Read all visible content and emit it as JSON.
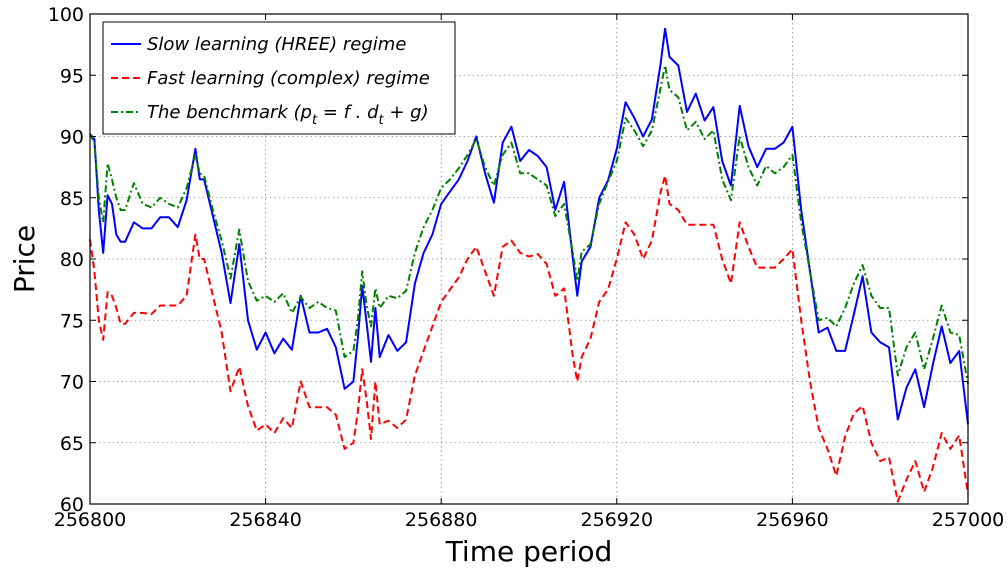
{
  "chart_data": {
    "type": "line",
    "title": "",
    "xlabel": "Time period",
    "ylabel": "Price",
    "xlim": [
      256800,
      257000
    ],
    "ylim": [
      60,
      100
    ],
    "xticks": [
      256800,
      256840,
      256880,
      256920,
      256960,
      257000
    ],
    "yticks": [
      60,
      65,
      70,
      75,
      80,
      85,
      90,
      95,
      100
    ],
    "grid": true,
    "legend_position": "top-left",
    "legend": {
      "slow": "Slow learning (HREE) regime",
      "fast": "Fast learning (complex) regime",
      "bench_prefix": "The benchmark (p",
      "bench_sub1": "t",
      "bench_mid": " = f . d",
      "bench_sub2": "t",
      "bench_suffix": " + g)"
    },
    "series": [
      {
        "name": "Slow learning (HREE) regime",
        "color": "#0000ff",
        "style": "solid",
        "x": [
          256800,
          256801,
          256802,
          256803,
          256804,
          256805,
          256806,
          256807,
          256808,
          256810,
          256812,
          256814,
          256816,
          256818,
          256820,
          256822,
          256824,
          256825,
          256826,
          256828,
          256830,
          256832,
          256834,
          256836,
          256838,
          256840,
          256842,
          256844,
          256846,
          256848,
          256850,
          256852,
          256854,
          256856,
          256858,
          256860,
          256861,
          256862,
          256863,
          256864,
          256865,
          256866,
          256868,
          256870,
          256872,
          256874,
          256876,
          256878,
          256880,
          256882,
          256884,
          256886,
          256888,
          256890,
          256892,
          256894,
          256896,
          256898,
          256900,
          256902,
          256904,
          256906,
          256908,
          256910,
          256911,
          256912,
          256914,
          256916,
          256918,
          256920,
          256922,
          256924,
          256926,
          256928,
          256930,
          256931,
          256932,
          256934,
          256936,
          256938,
          256940,
          256942,
          256944,
          256946,
          256948,
          256950,
          256952,
          256954,
          256956,
          256958,
          256960,
          256962,
          256964,
          256966,
          256968,
          256970,
          256972,
          256974,
          256976,
          256978,
          256980,
          256982,
          256984,
          256986,
          256988,
          256990,
          256992,
          256994,
          256996,
          256998,
          257000
        ],
        "y": [
          90.2,
          89.8,
          84.0,
          80.5,
          85.2,
          84.5,
          82.0,
          81.4,
          81.4,
          83.0,
          82.5,
          82.5,
          83.4,
          83.4,
          82.6,
          84.8,
          89.0,
          86.5,
          86.5,
          83.5,
          80.5,
          76.4,
          81.2,
          75.0,
          72.6,
          74.0,
          72.3,
          73.5,
          72.6,
          77.0,
          74.0,
          74.0,
          74.3,
          72.8,
          69.4,
          70.0,
          73.5,
          77.8,
          74.8,
          71.6,
          76.0,
          72.0,
          73.8,
          72.5,
          73.2,
          78.0,
          80.5,
          82.0,
          84.5,
          85.5,
          86.5,
          88.0,
          90.0,
          87.0,
          84.6,
          89.5,
          90.8,
          88.0,
          88.9,
          88.4,
          87.5,
          84.0,
          86.3,
          80.0,
          77.0,
          79.8,
          81.0,
          85.0,
          86.4,
          89.0,
          92.8,
          91.5,
          90.0,
          91.4,
          96.0,
          98.8,
          96.5,
          95.8,
          92.0,
          93.5,
          91.3,
          92.4,
          88.0,
          86.0,
          92.5,
          89.2,
          87.5,
          89.0,
          89.0,
          89.5,
          90.8,
          84.0,
          79.0,
          74.0,
          74.4,
          72.5,
          72.5,
          75.5,
          78.6,
          74.0,
          73.2,
          72.8,
          66.9,
          69.5,
          71.0,
          67.9,
          71.4,
          74.5,
          71.5,
          72.5,
          66.5
        ]
      },
      {
        "name": "Fast learning (complex) regime",
        "color": "#ff0000",
        "style": "dashed",
        "x": [
          256800,
          256801,
          256802,
          256803,
          256804,
          256805,
          256806,
          256807,
          256808,
          256810,
          256812,
          256814,
          256816,
          256818,
          256820,
          256822,
          256824,
          256825,
          256826,
          256828,
          256830,
          256832,
          256834,
          256836,
          256838,
          256840,
          256842,
          256844,
          256846,
          256848,
          256850,
          256852,
          256854,
          256856,
          256858,
          256860,
          256861,
          256862,
          256863,
          256864,
          256865,
          256866,
          256868,
          256870,
          256872,
          256874,
          256876,
          256878,
          256880,
          256882,
          256884,
          256886,
          256888,
          256890,
          256892,
          256894,
          256896,
          256898,
          256900,
          256902,
          256904,
          256906,
          256908,
          256910,
          256911,
          256912,
          256914,
          256916,
          256918,
          256920,
          256922,
          256924,
          256926,
          256928,
          256930,
          256931,
          256932,
          256934,
          256936,
          256938,
          256940,
          256942,
          256944,
          256946,
          256948,
          256950,
          256952,
          256954,
          256956,
          256958,
          256960,
          256962,
          256964,
          256966,
          256968,
          256970,
          256972,
          256974,
          256976,
          256978,
          256980,
          256982,
          256984,
          256986,
          256988,
          256990,
          256992,
          256994,
          256996,
          256998,
          257000
        ],
        "y": [
          81.6,
          79.0,
          75.0,
          73.4,
          77.3,
          77.0,
          76.0,
          74.7,
          74.7,
          75.6,
          75.6,
          75.5,
          76.2,
          76.2,
          76.2,
          77.0,
          82.0,
          80.0,
          80.0,
          77.0,
          74.0,
          69.2,
          71.2,
          68.0,
          66.0,
          66.5,
          65.8,
          67.0,
          66.2,
          70.0,
          67.9,
          67.9,
          67.9,
          67.3,
          64.5,
          65.0,
          67.5,
          71.0,
          68.5,
          65.3,
          70.0,
          66.5,
          66.8,
          66.2,
          66.9,
          70.5,
          72.5,
          74.5,
          76.5,
          77.5,
          78.5,
          80.0,
          81.0,
          79.0,
          77.0,
          81.0,
          81.5,
          80.5,
          80.2,
          80.4,
          79.6,
          77.0,
          77.6,
          72.0,
          70.0,
          72.0,
          73.5,
          76.5,
          77.5,
          80.0,
          83.0,
          82.0,
          80.0,
          81.5,
          85.5,
          86.8,
          84.5,
          84.0,
          82.8,
          82.8,
          82.8,
          82.8,
          80.0,
          78.0,
          83.0,
          81.0,
          79.3,
          79.3,
          79.3,
          80.0,
          80.8,
          75.0,
          70.0,
          66.2,
          64.5,
          62.3,
          65.5,
          67.4,
          68.0,
          65.0,
          63.5,
          63.8,
          60.2,
          62.0,
          63.5,
          61.0,
          63.0,
          65.8,
          64.5,
          65.6,
          60.8
        ]
      },
      {
        "name": "The benchmark (pt = f . dt + g)",
        "color": "#008000",
        "style": "dashdot",
        "x": [
          256800,
          256801,
          256802,
          256803,
          256804,
          256805,
          256806,
          256807,
          256808,
          256810,
          256812,
          256814,
          256816,
          256818,
          256820,
          256822,
          256824,
          256825,
          256826,
          256828,
          256830,
          256832,
          256834,
          256836,
          256838,
          256840,
          256842,
          256844,
          256846,
          256848,
          256850,
          256852,
          256854,
          256856,
          256858,
          256860,
          256861,
          256862,
          256863,
          256864,
          256865,
          256866,
          256868,
          256870,
          256872,
          256874,
          256876,
          256878,
          256880,
          256882,
          256884,
          256886,
          256888,
          256890,
          256892,
          256894,
          256896,
          256898,
          256900,
          256902,
          256904,
          256906,
          256908,
          256910,
          256911,
          256912,
          256914,
          256916,
          256918,
          256920,
          256922,
          256924,
          256926,
          256928,
          256930,
          256931,
          256932,
          256934,
          256936,
          256938,
          256940,
          256942,
          256944,
          256946,
          256948,
          256950,
          256952,
          256954,
          256956,
          256958,
          256960,
          256962,
          256964,
          256966,
          256968,
          256970,
          256972,
          256974,
          256976,
          256978,
          256980,
          256982,
          256984,
          256986,
          256988,
          256990,
          256992,
          256994,
          256996,
          256998,
          257000
        ],
        "y": [
          90.2,
          89.5,
          85.0,
          83.0,
          87.8,
          86.5,
          85.0,
          84.0,
          84.0,
          86.2,
          84.5,
          84.2,
          85.0,
          84.5,
          84.2,
          85.8,
          88.5,
          87.0,
          86.8,
          84.0,
          81.5,
          78.4,
          82.4,
          78.2,
          76.6,
          77.0,
          76.5,
          77.2,
          75.6,
          76.9,
          76.0,
          76.5,
          76.0,
          75.8,
          72.0,
          72.5,
          75.0,
          79.0,
          76.2,
          74.5,
          77.6,
          76.0,
          77.0,
          76.8,
          77.4,
          80.5,
          82.6,
          84.0,
          85.8,
          86.5,
          87.4,
          88.5,
          89.8,
          87.5,
          86.0,
          88.5,
          89.5,
          87.0,
          87.0,
          86.5,
          86.0,
          83.5,
          84.5,
          80.5,
          78.2,
          80.6,
          81.2,
          84.5,
          86.3,
          88.0,
          91.5,
          90.5,
          89.2,
          90.5,
          94.0,
          95.8,
          93.8,
          93.2,
          90.5,
          91.2,
          89.8,
          90.5,
          86.5,
          84.8,
          90.0,
          87.5,
          86.0,
          87.6,
          87.0,
          87.5,
          88.5,
          83.0,
          79.0,
          75.0,
          75.2,
          74.5,
          76.0,
          78.0,
          79.5,
          77.0,
          76.0,
          76.0,
          70.5,
          72.8,
          74.0,
          71.0,
          73.5,
          76.2,
          74.0,
          73.8,
          69.8
        ]
      }
    ]
  }
}
